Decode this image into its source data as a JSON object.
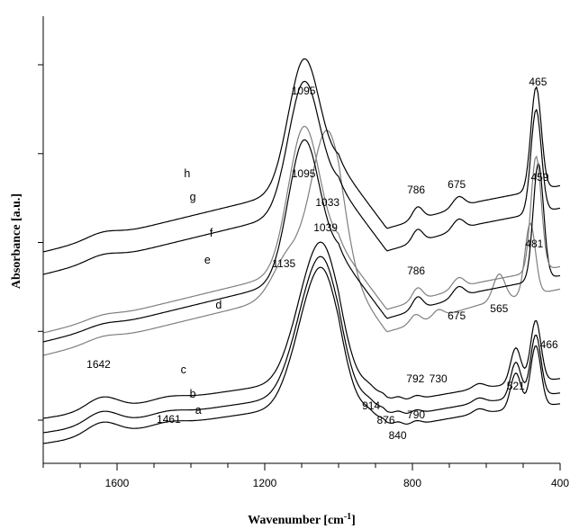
{
  "chart_data": {
    "type": "line",
    "title": "",
    "xlabel_main": "Wavenumber [cm",
    "xlabel_sup": "-1",
    "xlabel_close": "]",
    "ylabel": "Absorbance [a.u.]",
    "xlim": [
      1800,
      400
    ],
    "x_reversed": true,
    "y_ticks_labelled": false,
    "y_tick_count": 5,
    "x_ticks": [
      "1600",
      "1200",
      "800",
      "400"
    ],
    "x_tick_values": [
      1600,
      1200,
      800,
      400
    ],
    "colors": {
      "black": "#000000",
      "gray": "#7f7f7f"
    },
    "series": [
      {
        "name": "a",
        "color": "#000000",
        "offset": 22,
        "peaks": [
          [
            1640,
            14
          ],
          [
            1461,
            4
          ],
          [
            1100,
            58
          ],
          [
            1039,
            120
          ],
          [
            914,
            6
          ],
          [
            876,
            8
          ],
          [
            840,
            6
          ],
          [
            790,
            4
          ],
          [
            620,
            5
          ],
          [
            520,
            40
          ],
          [
            466,
            68
          ]
        ],
        "label": {
          "text": "a",
          "x": 1380,
          "y": 55
        }
      },
      {
        "name": "b",
        "color": "#000000",
        "offset": 34,
        "peaks": [
          [
            1640,
            14
          ],
          [
            1461,
            4
          ],
          [
            1100,
            58
          ],
          [
            1039,
            120
          ],
          [
            914,
            6
          ],
          [
            876,
            8
          ],
          [
            840,
            6
          ],
          [
            790,
            4
          ],
          [
            620,
            5
          ],
          [
            520,
            40
          ],
          [
            466,
            68
          ]
        ],
        "label": {
          "text": "b",
          "x": 1395,
          "y": 73
        }
      },
      {
        "name": "c",
        "color": "#000000",
        "offset": 50,
        "peaks": [
          [
            1640,
            14
          ],
          [
            1461,
            4
          ],
          [
            1100,
            58
          ],
          [
            1039,
            120
          ],
          [
            914,
            6
          ],
          [
            876,
            8
          ],
          [
            840,
            6
          ],
          [
            790,
            4
          ],
          [
            620,
            5
          ],
          [
            520,
            40
          ],
          [
            466,
            68
          ]
        ],
        "label": {
          "text": "c",
          "x": 1420,
          "y": 100
        }
      },
      {
        "name": "d",
        "color": "#7f7f7f",
        "offset": 120,
        "peaks": [
          [
            1640,
            5
          ],
          [
            1135,
            45
          ],
          [
            1033,
            158
          ],
          [
            792,
            10
          ],
          [
            730,
            8
          ],
          [
            565,
            30
          ],
          [
            481,
            80
          ]
        ],
        "label": {
          "text": "d",
          "x": 1325,
          "y": 172
        }
      },
      {
        "name": "e",
        "color": "#000000",
        "offset": 135,
        "peaks": [
          [
            1640,
            4
          ],
          [
            1095,
            150
          ],
          [
            786,
            14
          ],
          [
            675,
            12
          ],
          [
            459,
            130
          ]
        ],
        "label": {
          "text": "e",
          "x": 1355,
          "y": 222
        }
      },
      {
        "name": "f",
        "color": "#7f7f7f",
        "offset": 145,
        "peaks": [
          [
            1640,
            4
          ],
          [
            1095,
            155
          ],
          [
            786,
            14
          ],
          [
            675,
            12
          ],
          [
            465,
            128
          ]
        ],
        "label": {
          "text": "f",
          "x": 1345,
          "y": 252
        }
      },
      {
        "name": "g",
        "color": "#000000",
        "offset": 210,
        "peaks": [
          [
            1640,
            6
          ],
          [
            1095,
            140
          ],
          [
            786,
            14
          ],
          [
            675,
            12
          ],
          [
            465,
            115
          ]
        ],
        "label": {
          "text": "g",
          "x": 1395,
          "y": 292
        }
      },
      {
        "name": "h",
        "color": "#000000",
        "offset": 235,
        "peaks": [
          [
            1640,
            6
          ],
          [
            1095,
            140
          ],
          [
            786,
            14
          ],
          [
            675,
            12
          ],
          [
            465,
            115
          ]
        ],
        "label": {
          "text": "h",
          "x": 1410,
          "y": 318
        }
      }
    ],
    "annotations": [
      {
        "text": "1095",
        "x": 1095,
        "y": 410
      },
      {
        "text": "465",
        "x": 460,
        "y": 420
      },
      {
        "text": "786",
        "x": 790,
        "y": 300
      },
      {
        "text": "675",
        "x": 680,
        "y": 306
      },
      {
        "text": "1095",
        "x": 1095,
        "y": 318
      },
      {
        "text": "459",
        "x": 455,
        "y": 314
      },
      {
        "text": "1033",
        "x": 1030,
        "y": 286
      },
      {
        "text": "1135",
        "x": 1148,
        "y": 218
      },
      {
        "text": "1039",
        "x": 1035,
        "y": 258
      },
      {
        "text": "481",
        "x": 470,
        "y": 240
      },
      {
        "text": "786",
        "x": 790,
        "y": 210
      },
      {
        "text": "675",
        "x": 680,
        "y": 160
      },
      {
        "text": "565",
        "x": 565,
        "y": 168
      },
      {
        "text": "466",
        "x": 430,
        "y": 128
      },
      {
        "text": "521",
        "x": 520,
        "y": 82
      },
      {
        "text": "792",
        "x": 792,
        "y": 90
      },
      {
        "text": "730",
        "x": 730,
        "y": 90
      },
      {
        "text": "1642",
        "x": 1650,
        "y": 106
      },
      {
        "text": "914",
        "x": 912,
        "y": 60
      },
      {
        "text": "876",
        "x": 872,
        "y": 44
      },
      {
        "text": "790",
        "x": 790,
        "y": 50
      },
      {
        "text": "840",
        "x": 840,
        "y": 27
      },
      {
        "text": "1461",
        "x": 1460,
        "y": 45
      }
    ]
  }
}
